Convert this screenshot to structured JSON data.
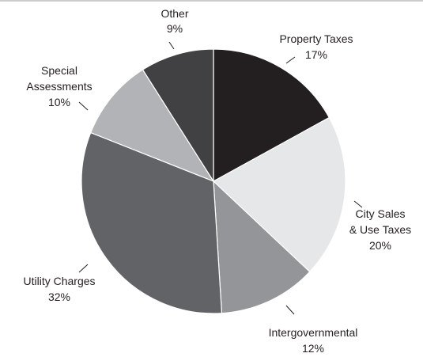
{
  "chart_data": {
    "type": "pie",
    "title": "",
    "categories": [
      "Property Taxes",
      "City Sales & Use Taxes",
      "Intergovernmental",
      "Utility Charges",
      "Special Assessments",
      "Other"
    ],
    "values": [
      17,
      20,
      12,
      32,
      10,
      9
    ],
    "percent_labels": [
      "17%",
      "20%",
      "12%",
      "32%",
      "10%",
      "9%"
    ],
    "label_lines": [
      [
        "Property Taxes"
      ],
      [
        "City Sales",
        "& Use Taxes"
      ],
      [
        "Intergovernmental"
      ],
      [
        "Utility Charges"
      ],
      [
        "Special",
        "Assessments"
      ],
      [
        "Other"
      ]
    ],
    "colors": [
      "#231f20",
      "#e6e7e8",
      "#939598",
      "#626366",
      "#b1b3b6",
      "#414042"
    ],
    "start": "12 o'clock, clockwise",
    "legend": "none (direct labels)"
  }
}
